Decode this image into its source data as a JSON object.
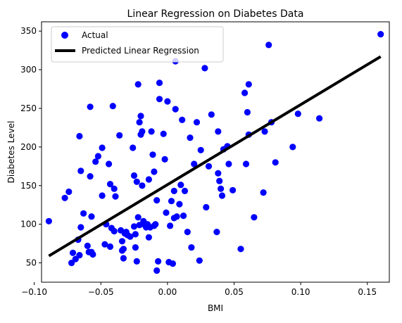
{
  "chart_data": {
    "type": "scatter",
    "title": "Linear Regression on Diabetes Data",
    "xlabel": "BMI",
    "ylabel": "Diabetes Level",
    "xlim": [
      -0.0945,
      0.1665
    ],
    "ylim": [
      25,
      362
    ],
    "xticks": [
      -0.1,
      -0.05,
      0.0,
      0.05,
      0.1,
      0.15
    ],
    "xtick_labels": [
      "−0.10",
      "−0.05",
      "0.00",
      "0.05",
      "0.10",
      "0.15"
    ],
    "yticks": [
      50,
      100,
      150,
      200,
      250,
      300,
      350
    ],
    "ytick_labels": [
      "50",
      "100",
      "150",
      "200",
      "250",
      "300",
      "350"
    ],
    "grid": false,
    "legend_position": "upper-left",
    "series": [
      {
        "name": "Actual",
        "kind": "scatter",
        "color": "#0000ff",
        "points": [
          [
            -0.089,
            104
          ],
          [
            -0.077,
            134
          ],
          [
            -0.074,
            142
          ],
          [
            -0.072,
            50
          ],
          [
            -0.071,
            63
          ],
          [
            -0.069,
            55
          ],
          [
            -0.067,
            80
          ],
          [
            -0.066,
            60
          ],
          [
            -0.066,
            214
          ],
          [
            -0.065,
            96
          ],
          [
            -0.065,
            169
          ],
          [
            -0.063,
            114
          ],
          [
            -0.06,
            72
          ],
          [
            -0.059,
            64
          ],
          [
            -0.058,
            252
          ],
          [
            -0.058,
            162
          ],
          [
            -0.057,
            110
          ],
          [
            -0.057,
            64
          ],
          [
            -0.056,
            61
          ],
          [
            -0.054,
            181
          ],
          [
            -0.052,
            188
          ],
          [
            -0.049,
            199
          ],
          [
            -0.049,
            137
          ],
          [
            -0.047,
            74
          ],
          [
            -0.046,
            100
          ],
          [
            -0.044,
            178
          ],
          [
            -0.043,
            152
          ],
          [
            -0.043,
            71
          ],
          [
            -0.042,
            95
          ],
          [
            -0.041,
            253
          ],
          [
            -0.04,
            91
          ],
          [
            -0.04,
            146
          ],
          [
            -0.039,
            136
          ],
          [
            -0.036,
            215
          ],
          [
            -0.035,
            92
          ],
          [
            -0.034,
            78
          ],
          [
            -0.034,
            66
          ],
          [
            -0.033,
            56
          ],
          [
            -0.033,
            68
          ],
          [
            -0.032,
            88
          ],
          [
            -0.031,
            90
          ],
          [
            -0.03,
            86
          ],
          [
            -0.028,
            84
          ],
          [
            -0.026,
            199
          ],
          [
            -0.025,
            163
          ],
          [
            -0.025,
            97
          ],
          [
            -0.024,
            70
          ],
          [
            -0.024,
            87
          ],
          [
            -0.023,
            155
          ],
          [
            -0.023,
            52
          ],
          [
            -0.022,
            281
          ],
          [
            -0.022,
            109
          ],
          [
            -0.021,
            99
          ],
          [
            -0.021,
            232
          ],
          [
            -0.02,
            240
          ],
          [
            -0.02,
            216
          ],
          [
            -0.019,
            220
          ],
          [
            -0.019,
            150
          ],
          [
            -0.018,
            104
          ],
          [
            -0.017,
            99
          ],
          [
            -0.016,
            96
          ],
          [
            -0.015,
            100
          ],
          [
            -0.014,
            158
          ],
          [
            -0.014,
            83
          ],
          [
            -0.013,
            96
          ],
          [
            -0.012,
            220
          ],
          [
            -0.011,
            190
          ],
          [
            -0.01,
            98
          ],
          [
            -0.01,
            168
          ],
          [
            -0.009,
            100
          ],
          [
            -0.008,
            131
          ],
          [
            -0.008,
            40
          ],
          [
            -0.007,
            52
          ],
          [
            -0.006,
            283
          ],
          [
            -0.006,
            262
          ],
          [
            -0.003,
            217
          ],
          [
            -0.002,
            184
          ],
          [
            -0.001,
            115
          ],
          [
            0.0,
            259
          ],
          [
            0.001,
            51
          ],
          [
            0.002,
            98
          ],
          [
            0.003,
            130
          ],
          [
            0.004,
            49
          ],
          [
            0.005,
            143
          ],
          [
            0.005,
            108
          ],
          [
            0.006,
            311
          ],
          [
            0.006,
            249
          ],
          [
            0.007,
            110
          ],
          [
            0.009,
            126
          ],
          [
            0.01,
            151
          ],
          [
            0.011,
            235
          ],
          [
            0.012,
            111
          ],
          [
            0.013,
            143
          ],
          [
            0.015,
            90
          ],
          [
            0.017,
            212
          ],
          [
            0.018,
            70
          ],
          [
            0.02,
            178
          ],
          [
            0.022,
            232
          ],
          [
            0.024,
            53
          ],
          [
            0.025,
            196
          ],
          [
            0.028,
            302
          ],
          [
            0.029,
            122
          ],
          [
            0.031,
            175
          ],
          [
            0.033,
            242
          ],
          [
            0.037,
            90
          ],
          [
            0.038,
            220
          ],
          [
            0.038,
            166
          ],
          [
            0.039,
            156
          ],
          [
            0.04,
            146
          ],
          [
            0.041,
            137
          ],
          [
            0.042,
            197
          ],
          [
            0.045,
            201
          ],
          [
            0.046,
            178
          ],
          [
            0.049,
            144
          ],
          [
            0.055,
            68
          ],
          [
            0.058,
            270
          ],
          [
            0.059,
            178
          ],
          [
            0.06,
            245
          ],
          [
            0.061,
            216
          ],
          [
            0.061,
            281
          ],
          [
            0.065,
            109
          ],
          [
            0.072,
            141
          ],
          [
            0.073,
            220
          ],
          [
            0.076,
            332
          ],
          [
            0.078,
            232
          ],
          [
            0.081,
            180
          ],
          [
            0.094,
            200
          ],
          [
            0.098,
            243
          ],
          [
            0.114,
            237
          ],
          [
            0.16,
            346
          ]
        ]
      },
      {
        "name": "Predicted Linear Regression",
        "kind": "line",
        "color": "#000000",
        "points": [
          [
            -0.089,
            59
          ],
          [
            0.16,
            317
          ]
        ]
      }
    ]
  }
}
